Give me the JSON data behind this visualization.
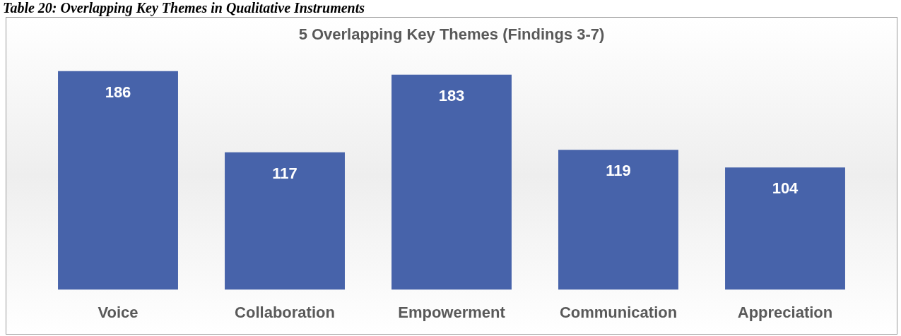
{
  "chart_data": {
    "type": "bar",
    "title": "5 Overlapping Key Themes (Findings 3-7)",
    "annotations": [
      "Table 20: Overlapping Key Themes in Qualitative Instruments"
    ],
    "categories": [
      "Voice",
      "Collaboration",
      "Empowerment",
      "Communication",
      "Appreciation"
    ],
    "values": [
      186,
      117,
      183,
      119,
      104
    ],
    "color": "#4763aa",
    "data_labels": true,
    "grid": false,
    "legend": false
  }
}
